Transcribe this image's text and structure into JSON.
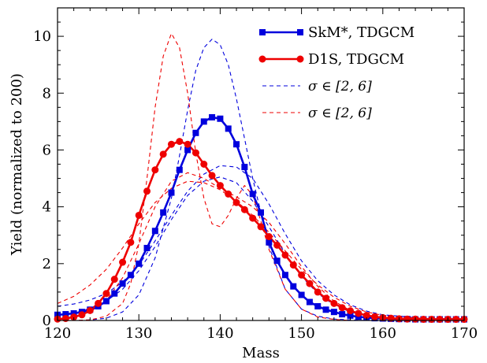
{
  "chart_data": {
    "type": "line",
    "xlabel": "Mass",
    "ylabel": "Yield (normalized to 200)",
    "xlim": [
      120,
      170
    ],
    "ylim": [
      0,
      11
    ],
    "xticks": [
      "120",
      "130",
      "140",
      "150",
      "160",
      "170"
    ],
    "yticks": [
      "0",
      "2",
      "4",
      "6",
      "8",
      "10"
    ],
    "grid": false,
    "legend": "top-right",
    "series": [
      {
        "name": "SkM*, TDGCM",
        "color": "#0000dd",
        "style": "solid",
        "marker": "square",
        "x": [
          120,
          121,
          122,
          123,
          124,
          125,
          126,
          127,
          128,
          129,
          130,
          131,
          132,
          133,
          134,
          135,
          136,
          137,
          138,
          139,
          140,
          141,
          142,
          143,
          144,
          145,
          146,
          147,
          148,
          149,
          150,
          151,
          152,
          153,
          154,
          155,
          156,
          157,
          158,
          159,
          160,
          161,
          162,
          163,
          164,
          165,
          166,
          167,
          168,
          169,
          170
        ],
        "y": [
          0.2,
          0.22,
          0.25,
          0.3,
          0.38,
          0.5,
          0.68,
          0.95,
          1.3,
          1.6,
          2.0,
          2.55,
          3.15,
          3.8,
          4.5,
          5.3,
          6.0,
          6.6,
          7.0,
          7.15,
          7.1,
          6.75,
          6.2,
          5.4,
          4.45,
          3.8,
          2.75,
          2.1,
          1.6,
          1.2,
          0.9,
          0.65,
          0.5,
          0.38,
          0.3,
          0.22,
          0.17,
          0.13,
          0.1,
          0.08,
          0.07,
          0.06,
          0.05,
          0.05,
          0.04,
          0.04,
          0.04,
          0.04,
          0.04,
          0.04,
          0.04
        ]
      },
      {
        "name": "D1S, TDGCM",
        "color": "#ee0000",
        "style": "solid",
        "marker": "circle",
        "x": [
          120,
          121,
          122,
          123,
          124,
          125,
          126,
          127,
          128,
          129,
          130,
          131,
          132,
          133,
          134,
          135,
          136,
          137,
          138,
          139,
          140,
          141,
          142,
          143,
          144,
          145,
          146,
          147,
          148,
          149,
          150,
          151,
          152,
          153,
          154,
          155,
          156,
          157,
          158,
          159,
          160,
          161,
          162,
          163,
          164,
          165,
          166,
          167,
          168,
          169,
          170
        ],
        "y": [
          0.05,
          0.07,
          0.12,
          0.2,
          0.35,
          0.6,
          0.95,
          1.45,
          2.05,
          2.75,
          3.7,
          4.55,
          5.3,
          5.85,
          6.2,
          6.3,
          6.2,
          5.9,
          5.5,
          5.1,
          4.75,
          4.45,
          4.15,
          3.9,
          3.6,
          3.3,
          2.95,
          2.65,
          2.3,
          1.95,
          1.6,
          1.3,
          1.0,
          0.78,
          0.6,
          0.45,
          0.34,
          0.25,
          0.18,
          0.13,
          0.1,
          0.08,
          0.06,
          0.05,
          0.05,
          0.04,
          0.04,
          0.04,
          0.04,
          0.04,
          0.04
        ]
      },
      {
        "name": "σ ∈ [2, 6]",
        "color": "#0000dd",
        "style": "dashed",
        "x": [
          120,
          122,
          124,
          126,
          128,
          130,
          132,
          134,
          135,
          136,
          137,
          138,
          139,
          140,
          141,
          142,
          143,
          144,
          146,
          148,
          150,
          152,
          154,
          156,
          158,
          160,
          165,
          170
        ],
        "y": [
          0.0,
          0.0,
          0.02,
          0.08,
          0.3,
          0.9,
          2.2,
          4.3,
          5.8,
          7.4,
          8.8,
          9.6,
          9.9,
          9.7,
          9.0,
          7.8,
          6.4,
          5.0,
          2.6,
          1.1,
          0.4,
          0.15,
          0.05,
          0.02,
          0.0,
          0.0,
          0.0,
          0.0
        ]
      },
      {
        "name": "σ ∈ [2, 6]",
        "color": "#0000dd",
        "style": "dashed",
        "x": [
          120,
          122,
          124,
          126,
          128,
          130,
          132,
          134,
          136,
          138,
          140,
          142,
          144,
          146,
          148,
          150,
          152,
          154,
          156,
          158,
          160,
          165,
          170
        ],
        "y": [
          0.5,
          0.58,
          0.72,
          0.95,
          1.35,
          1.95,
          2.8,
          3.7,
          4.55,
          5.15,
          5.45,
          5.4,
          5.0,
          4.1,
          3.05,
          2.1,
          1.4,
          0.9,
          0.55,
          0.33,
          0.2,
          0.08,
          0.05
        ]
      },
      {
        "name": "σ ∈ [2, 6]",
        "color": "#0000dd",
        "style": "dashed",
        "x": [
          120,
          122,
          124,
          126,
          128,
          130,
          132,
          134,
          136,
          138,
          140,
          142,
          144,
          146,
          148,
          150,
          152,
          154,
          156,
          158,
          160,
          165,
          170
        ],
        "y": [
          0.2,
          0.28,
          0.42,
          0.68,
          1.1,
          1.75,
          2.6,
          3.55,
          4.4,
          4.9,
          5.05,
          4.85,
          4.2,
          3.3,
          2.35,
          1.55,
          0.95,
          0.55,
          0.3,
          0.17,
          0.1,
          0.04,
          0.02
        ]
      },
      {
        "name": "σ ∈ [2, 6]",
        "color": "#ee0000",
        "style": "dashed",
        "x": [
          120,
          122,
          124,
          126,
          128,
          129,
          130,
          131,
          132,
          133,
          134,
          135,
          136,
          137,
          138,
          139,
          140,
          141,
          142,
          143,
          144,
          145,
          146,
          148,
          150,
          152,
          154,
          156,
          158,
          160,
          165,
          170
        ],
        "y": [
          0.0,
          0.0,
          0.02,
          0.15,
          0.6,
          1.3,
          2.7,
          5.0,
          7.5,
          9.3,
          10.1,
          9.6,
          8.0,
          5.9,
          4.3,
          3.4,
          3.3,
          3.7,
          4.3,
          4.75,
          4.4,
          3.5,
          2.5,
          1.1,
          0.4,
          0.12,
          0.04,
          0.0,
          0.0,
          0.0,
          0.0,
          0.0
        ]
      },
      {
        "name": "σ ∈ [2, 6]",
        "color": "#ee0000",
        "style": "dashed",
        "x": [
          120,
          122,
          124,
          126,
          128,
          130,
          132,
          134,
          136,
          138,
          140,
          142,
          144,
          146,
          148,
          150,
          152,
          154,
          156,
          158,
          160,
          165,
          170
        ],
        "y": [
          0.6,
          0.85,
          1.25,
          1.8,
          2.55,
          3.4,
          4.15,
          4.65,
          4.9,
          4.85,
          4.6,
          4.2,
          3.7,
          3.1,
          2.45,
          1.8,
          1.25,
          0.82,
          0.5,
          0.3,
          0.18,
          0.07,
          0.04
        ]
      },
      {
        "name": "σ ∈ [2, 6]",
        "color": "#ee0000",
        "style": "dashed",
        "x": [
          120,
          122,
          124,
          126,
          128,
          130,
          132,
          134,
          136,
          138,
          140,
          142,
          144,
          146,
          148,
          150,
          152,
          154,
          156,
          158,
          160,
          165,
          170
        ],
        "y": [
          0.05,
          0.12,
          0.3,
          0.7,
          1.5,
          2.7,
          4.0,
          4.9,
          5.2,
          5.0,
          4.65,
          4.35,
          4.0,
          3.45,
          2.7,
          1.9,
          1.2,
          0.68,
          0.35,
          0.17,
          0.08,
          0.02,
          0.01
        ]
      }
    ],
    "legend_entries": [
      {
        "label": "SkM*, TDGCM",
        "color": "#0000dd",
        "style": "solid",
        "marker": "square"
      },
      {
        "label": "D1S, TDGCM",
        "color": "#ee0000",
        "style": "solid",
        "marker": "circle"
      },
      {
        "label": "σ ∈ [2, 6]",
        "color": "#0000dd",
        "style": "dashed"
      },
      {
        "label": "σ ∈ [2, 6]",
        "color": "#ee0000",
        "style": "dashed"
      }
    ]
  }
}
